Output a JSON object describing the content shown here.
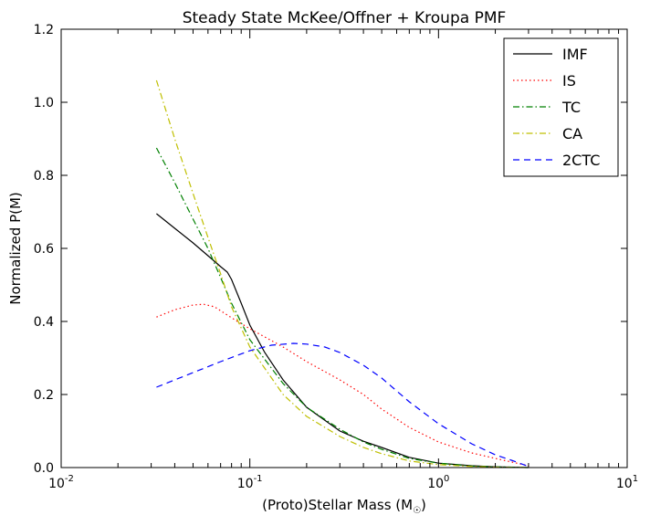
{
  "chart_data": {
    "type": "line",
    "title": "Steady State McKee/Offner + Kroupa PMF",
    "xlabel_main": "(Proto)Stellar Mass (M",
    "xlabel_sub": "☉",
    "xlabel_close": ")",
    "ylabel": "Normalized P(M)",
    "xscale": "log",
    "xlim": [
      0.01,
      10
    ],
    "ylim": [
      0,
      1.2
    ],
    "yticks": [
      "0.0",
      "0.2",
      "0.4",
      "0.6",
      "0.8",
      "1.0",
      "1.2"
    ],
    "xticks": [
      {
        "base": "10",
        "exp": "-2"
      },
      {
        "base": "10",
        "exp": "-1"
      },
      {
        "base": "10",
        "exp": "0"
      },
      {
        "base": "10",
        "exp": "1"
      }
    ],
    "legend_position": "top-right",
    "series": [
      {
        "name": "IMF",
        "color": "#000000",
        "style": "solid",
        "points": [
          [
            0.032,
            0.695
          ],
          [
            0.04,
            0.655
          ],
          [
            0.05,
            0.615
          ],
          [
            0.06,
            0.58
          ],
          [
            0.07,
            0.55
          ],
          [
            0.076,
            0.535
          ],
          [
            0.08,
            0.515
          ],
          [
            0.09,
            0.45
          ],
          [
            0.1,
            0.39
          ],
          [
            0.12,
            0.315
          ],
          [
            0.15,
            0.24
          ],
          [
            0.2,
            0.165
          ],
          [
            0.3,
            0.1
          ],
          [
            0.4,
            0.072
          ],
          [
            0.5,
            0.055
          ],
          [
            0.7,
            0.028
          ],
          [
            1.0,
            0.012
          ],
          [
            1.5,
            0.005
          ],
          [
            2.0,
            0.002
          ],
          [
            3.0,
            0.0
          ]
        ]
      },
      {
        "name": "IS",
        "color": "#ff0000",
        "style": "dotted",
        "points": [
          [
            0.032,
            0.412
          ],
          [
            0.04,
            0.432
          ],
          [
            0.05,
            0.445
          ],
          [
            0.057,
            0.447
          ],
          [
            0.065,
            0.44
          ],
          [
            0.08,
            0.41
          ],
          [
            0.1,
            0.38
          ],
          [
            0.15,
            0.33
          ],
          [
            0.2,
            0.29
          ],
          [
            0.3,
            0.24
          ],
          [
            0.4,
            0.2
          ],
          [
            0.5,
            0.16
          ],
          [
            0.7,
            0.11
          ],
          [
            1.0,
            0.07
          ],
          [
            1.5,
            0.04
          ],
          [
            2.0,
            0.025
          ],
          [
            3.0,
            0.005
          ]
        ]
      },
      {
        "name": "TC",
        "color": "#008000",
        "style": "dashdot",
        "points": [
          [
            0.032,
            0.875
          ],
          [
            0.04,
            0.78
          ],
          [
            0.05,
            0.68
          ],
          [
            0.06,
            0.6
          ],
          [
            0.07,
            0.52
          ],
          [
            0.08,
            0.45
          ],
          [
            0.1,
            0.35
          ],
          [
            0.15,
            0.23
          ],
          [
            0.2,
            0.165
          ],
          [
            0.3,
            0.105
          ],
          [
            0.4,
            0.07
          ],
          [
            0.5,
            0.05
          ],
          [
            0.7,
            0.025
          ],
          [
            1.0,
            0.012
          ],
          [
            1.5,
            0.004
          ],
          [
            2.0,
            0.002
          ],
          [
            3.0,
            0.0
          ]
        ]
      },
      {
        "name": "CA",
        "color": "#bfbf00",
        "style": "dashdot",
        "points": [
          [
            0.032,
            1.06
          ],
          [
            0.04,
            0.9
          ],
          [
            0.05,
            0.75
          ],
          [
            0.06,
            0.63
          ],
          [
            0.07,
            0.53
          ],
          [
            0.08,
            0.44
          ],
          [
            0.1,
            0.33
          ],
          [
            0.15,
            0.2
          ],
          [
            0.2,
            0.14
          ],
          [
            0.3,
            0.085
          ],
          [
            0.4,
            0.055
          ],
          [
            0.5,
            0.038
          ],
          [
            0.7,
            0.018
          ],
          [
            1.0,
            0.008
          ],
          [
            1.5,
            0.003
          ],
          [
            2.0,
            0.001
          ],
          [
            3.0,
            0.0
          ]
        ]
      },
      {
        "name": "2CTC",
        "color": "#0000ff",
        "style": "dashed",
        "points": [
          [
            0.032,
            0.22
          ],
          [
            0.05,
            0.26
          ],
          [
            0.07,
            0.29
          ],
          [
            0.1,
            0.32
          ],
          [
            0.13,
            0.335
          ],
          [
            0.17,
            0.34
          ],
          [
            0.2,
            0.338
          ],
          [
            0.25,
            0.33
          ],
          [
            0.3,
            0.315
          ],
          [
            0.4,
            0.28
          ],
          [
            0.5,
            0.245
          ],
          [
            0.7,
            0.18
          ],
          [
            1.0,
            0.12
          ],
          [
            1.5,
            0.065
          ],
          [
            2.0,
            0.035
          ],
          [
            2.5,
            0.018
          ],
          [
            3.0,
            0.003
          ]
        ]
      }
    ]
  }
}
